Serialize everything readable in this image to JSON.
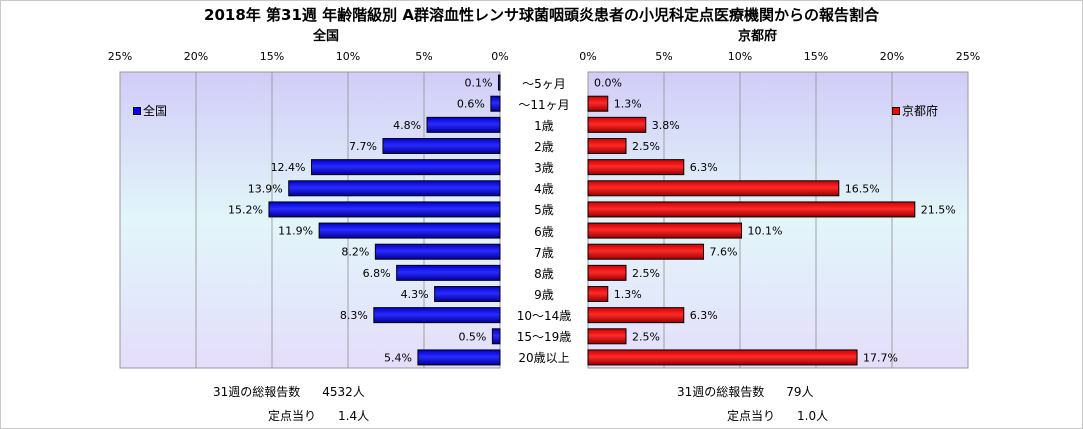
{
  "title": "2018年 第31週 年齢階級別 A群溶血性レンサ球菌咽頭炎患者の小児科定点医療機関からの報告割合",
  "chart_data": {
    "type": "bar",
    "orientation": "horizontal-butterfly",
    "categories": [
      "〜5ヶ月",
      "〜11ヶ月",
      "1歳",
      "2歳",
      "3歳",
      "4歳",
      "5歳",
      "6歳",
      "7歳",
      "8歳",
      "9歳",
      "10〜14歳",
      "15〜19歳",
      "20歳以上"
    ],
    "xlim": [
      0,
      25
    ],
    "tick_labels": [
      "0%",
      "5%",
      "10%",
      "15%",
      "20%",
      "25%"
    ],
    "series": [
      {
        "name": "全国",
        "side": "left",
        "color": "#0000ff",
        "values": [
          0.1,
          0.6,
          4.8,
          7.7,
          12.4,
          13.9,
          15.2,
          11.9,
          8.2,
          6.8,
          4.3,
          8.3,
          0.5,
          5.4
        ],
        "labels": [
          "0.1%",
          "0.6%",
          "4.8%",
          "7.7%",
          "12.4%",
          "13.9%",
          "15.2%",
          "11.9%",
          "8.2%",
          "6.8%",
          "4.3%",
          "8.3%",
          "0.5%",
          "5.4%"
        ]
      },
      {
        "name": "京都府",
        "side": "right",
        "color": "#ff0000",
        "values": [
          0.0,
          1.3,
          3.8,
          2.5,
          6.3,
          16.5,
          21.5,
          10.1,
          7.6,
          2.5,
          1.3,
          6.3,
          2.5,
          17.7
        ],
        "labels": [
          "0.0%",
          "1.3%",
          "3.8%",
          "2.5%",
          "6.3%",
          "16.5%",
          "21.5%",
          "10.1%",
          "7.6%",
          "2.5%",
          "1.3%",
          "6.3%",
          "2.5%",
          "17.7%"
        ]
      }
    ]
  },
  "panels": {
    "left_title": "全国",
    "right_title": "京都府",
    "left_legend": "全国",
    "right_legend": "京都府"
  },
  "summary": {
    "left_total_label": "31週の総報告数",
    "left_total_value": "4532人",
    "left_per_site_label": "定点当り",
    "left_per_site_value": "1.4人",
    "right_total_label": "31週の総報告数",
    "right_total_value": "79人",
    "right_per_site_label": "定点当り",
    "right_per_site_value": "1.0人"
  }
}
